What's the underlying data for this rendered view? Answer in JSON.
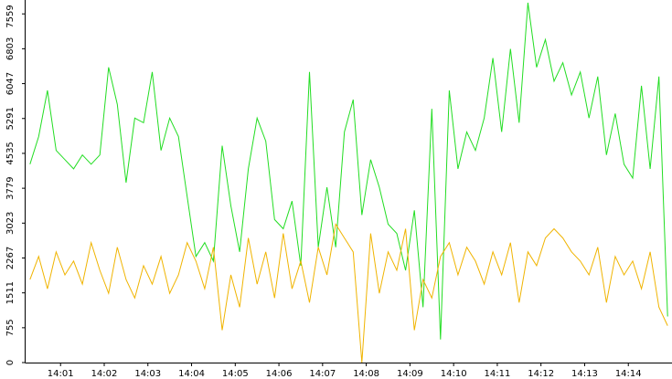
{
  "chart_data": {
    "type": "line",
    "x": [
      0.3,
      0.5,
      0.7,
      0.9,
      1.1,
      1.3,
      1.5,
      1.7,
      1.9,
      2.1,
      2.3,
      2.5,
      2.7,
      2.9,
      3.1,
      3.3,
      3.5,
      3.7,
      3.9,
      4.1,
      4.3,
      4.5,
      4.7,
      4.9,
      5.1,
      5.3,
      5.5,
      5.7,
      5.9,
      6.1,
      6.3,
      6.5,
      6.7,
      6.9,
      7.1,
      7.3,
      7.5,
      7.7,
      7.9,
      8.1,
      8.3,
      8.5,
      8.7,
      8.9,
      9.1,
      9.3,
      9.5,
      9.7,
      9.9,
      10.1,
      10.3,
      10.5,
      10.7,
      10.9,
      11.1,
      11.3,
      11.5,
      11.7,
      11.9,
      12.1,
      12.3,
      12.5,
      12.7,
      12.9,
      13.1,
      13.3,
      13.5,
      13.7,
      13.9,
      14.1,
      14.3,
      14.5,
      14.7,
      14.9
    ],
    "series": [
      {
        "color": "#22dd22",
        "values": [
          4300,
          4900,
          5900,
          4600,
          4400,
          4200,
          4500,
          4300,
          4500,
          6400,
          5600,
          3900,
          5300,
          5200,
          6300,
          4600,
          5300,
          4900,
          3600,
          2300,
          2600,
          2200,
          4700,
          3400,
          2400,
          4200,
          5300,
          4800,
          3100,
          2900,
          3500,
          2100,
          6300,
          2500,
          3800,
          2500,
          5000,
          5700,
          3200,
          4400,
          3800,
          3000,
          2800,
          2000,
          3300,
          1200,
          5500,
          500,
          5900,
          4200,
          5000,
          4600,
          5300,
          6600,
          5000,
          6800,
          5200,
          7800,
          6400,
          7000,
          6100,
          6500,
          5800,
          6300,
          5300,
          6200,
          4500,
          5400,
          4300,
          4000,
          6000,
          4200,
          6200,
          1000
        ]
      },
      {
        "color": "#f0b400",
        "values": [
          1800,
          2300,
          1600,
          2400,
          1900,
          2200,
          1700,
          2600,
          2000,
          1500,
          2500,
          1800,
          1400,
          2100,
          1700,
          2300,
          1500,
          1900,
          2600,
          2200,
          1600,
          2500,
          700,
          1900,
          1200,
          2700,
          1700,
          2400,
          1400,
          2800,
          1600,
          2200,
          1300,
          2500,
          1900,
          3000,
          2700,
          2400,
          0,
          2800,
          1500,
          2400,
          2000,
          2900,
          700,
          1800,
          1400,
          2300,
          2600,
          1900,
          2500,
          2200,
          1700,
          2400,
          1900,
          2600,
          1300,
          2400,
          2100,
          2700,
          2900,
          2700,
          2400,
          2200,
          1900,
          2500,
          1300,
          2300,
          1900,
          2200,
          1600,
          2400,
          1200,
          800
        ]
      }
    ],
    "xlim": [
      0.2,
      15
    ],
    "xticks": [
      {
        "value": 1,
        "label": "14:01"
      },
      {
        "value": 2,
        "label": "14:02"
      },
      {
        "value": 3,
        "label": "14:03"
      },
      {
        "value": 4,
        "label": "14:04"
      },
      {
        "value": 5,
        "label": "14:05"
      },
      {
        "value": 6,
        "label": "14:06"
      },
      {
        "value": 7,
        "label": "14:07"
      },
      {
        "value": 8,
        "label": "14:08"
      },
      {
        "value": 9,
        "label": "14:09"
      },
      {
        "value": 10,
        "label": "14:10"
      },
      {
        "value": 11,
        "label": "14:11"
      },
      {
        "value": 12,
        "label": "14:12"
      },
      {
        "value": 13,
        "label": "14:13"
      },
      {
        "value": 14,
        "label": "14:14"
      }
    ],
    "ylim": [
      0,
      7860
    ],
    "yticks": [
      0,
      755,
      1511,
      2267,
      3023,
      3779,
      4535,
      5291,
      6047,
      6803,
      7559
    ]
  }
}
